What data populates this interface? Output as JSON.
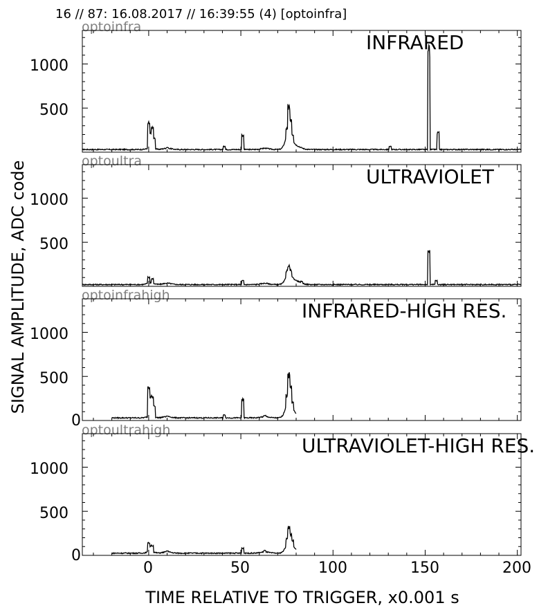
{
  "header": {
    "title": "16 // 87:   16.08.2017 // 16:39:55 (4)  [optoinfra]"
  },
  "axes": {
    "ylabel": "SIGNAL AMPLITUDE,  ADC code",
    "xlabel": "TIME RELATIVE TO TRIGGER,   x0.001 s",
    "x_ticks": [
      "0",
      "50",
      "100",
      "150",
      "200"
    ],
    "y_ticks_top": [
      "1000",
      "500"
    ],
    "y_ticks_bottom": [
      "1000",
      "500",
      "0"
    ]
  },
  "chart_data": [
    {
      "type": "line",
      "channel": "optoinfra",
      "title": "INFRARED",
      "xlim": [
        -36,
        202
      ],
      "ylim": [
        0,
        1380
      ],
      "baseline": 30,
      "x_range": [
        -36,
        202
      ],
      "peaks": [
        {
          "x": 0,
          "y": 350
        },
        {
          "x": 1,
          "y": 230
        },
        {
          "x": 2,
          "y": 300
        },
        {
          "x": 3,
          "y": 170
        },
        {
          "x": 10,
          "y": 55
        },
        {
          "x": 41,
          "y": 70
        },
        {
          "x": 51,
          "y": 210
        },
        {
          "x": 75,
          "y": 290
        },
        {
          "x": 76,
          "y": 550
        },
        {
          "x": 77,
          "y": 370
        },
        {
          "x": 78,
          "y": 220
        },
        {
          "x": 131,
          "y": 70
        },
        {
          "x": 152,
          "y": 1230
        },
        {
          "x": 157,
          "y": 230
        }
      ]
    },
    {
      "type": "line",
      "channel": "optoultra",
      "title": "ULTRAVIOLET",
      "xlim": [
        -36,
        202
      ],
      "ylim": [
        0,
        1380
      ],
      "baseline": 20,
      "x_range": [
        -36,
        202
      ],
      "peaks": [
        {
          "x": 0,
          "y": 110
        },
        {
          "x": 2,
          "y": 90
        },
        {
          "x": 51,
          "y": 70
        },
        {
          "x": 75,
          "y": 190
        },
        {
          "x": 76,
          "y": 250
        },
        {
          "x": 77,
          "y": 200
        },
        {
          "x": 83,
          "y": 60
        },
        {
          "x": 152,
          "y": 410
        },
        {
          "x": 156,
          "y": 70
        }
      ]
    },
    {
      "type": "line",
      "channel": "optoinfrahigh",
      "title": "INFRARED-HIGH RES.",
      "xlim": [
        -36,
        202
      ],
      "ylim": [
        0,
        1380
      ],
      "baseline": 30,
      "x_range": [
        -20,
        80
      ],
      "peaks": [
        {
          "x": 0,
          "y": 420
        },
        {
          "x": 1,
          "y": 290
        },
        {
          "x": 2,
          "y": 290
        },
        {
          "x": 3,
          "y": 180
        },
        {
          "x": 10,
          "y": 55
        },
        {
          "x": 41,
          "y": 70
        },
        {
          "x": 51,
          "y": 250
        },
        {
          "x": 63,
          "y": 60
        },
        {
          "x": 75,
          "y": 300
        },
        {
          "x": 76,
          "y": 560
        },
        {
          "x": 77,
          "y": 400
        },
        {
          "x": 78,
          "y": 220
        }
      ]
    },
    {
      "type": "line",
      "channel": "optoultrahigh",
      "title": "ULTRAVIOLET-HIGH RES.",
      "xlim": [
        -36,
        202
      ],
      "ylim": [
        0,
        1380
      ],
      "baseline": 25,
      "x_range": [
        -20,
        80
      ],
      "peaks": [
        {
          "x": 0,
          "y": 160
        },
        {
          "x": 1,
          "y": 110
        },
        {
          "x": 2,
          "y": 120
        },
        {
          "x": 10,
          "y": 55
        },
        {
          "x": 51,
          "y": 90
        },
        {
          "x": 63,
          "y": 60
        },
        {
          "x": 75,
          "y": 200
        },
        {
          "x": 76,
          "y": 340
        },
        {
          "x": 77,
          "y": 260
        },
        {
          "x": 78,
          "y": 180
        }
      ]
    }
  ]
}
